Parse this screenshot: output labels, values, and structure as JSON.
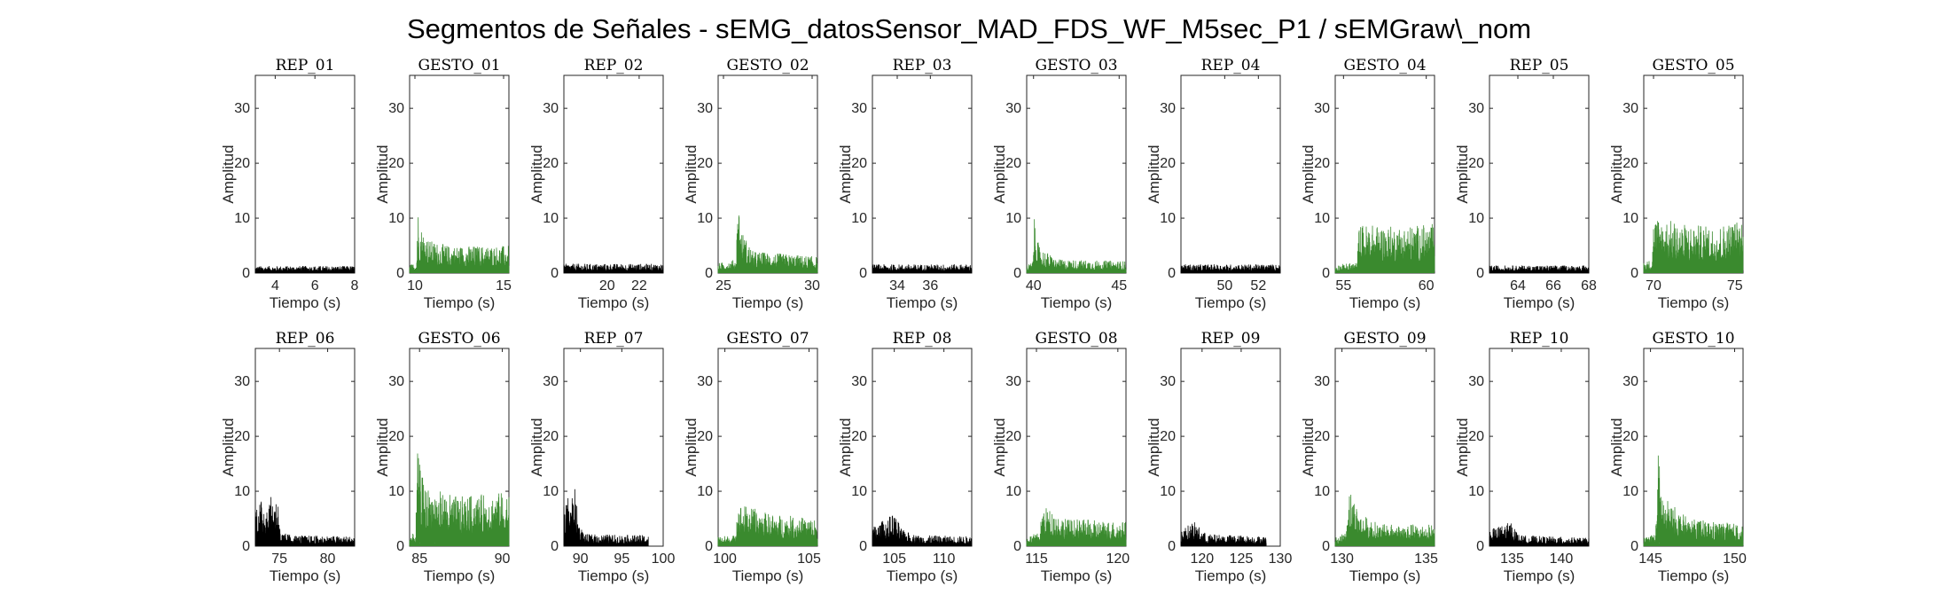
{
  "title": "Segmentos de Señales - sEMG_datosSensor_MAD_FDS_WF_M5sec_P1 / sEMGraw\\_nom",
  "colors": {
    "rep": "#000000",
    "gesto": "#3a8a2e",
    "axis": "#262626"
  },
  "chart_data": [
    {
      "type": "line",
      "title": "REP_01",
      "kind": "rep",
      "xlabel": "Tiempo (s)",
      "ylabel": "Amplitud",
      "xlim": [
        3,
        8
      ],
      "ylim": [
        0,
        36
      ],
      "xticks": [
        4,
        6,
        8
      ],
      "yticks": [
        0,
        10,
        20,
        30
      ],
      "x_range": [
        3,
        8
      ],
      "envelope": [
        [
          0,
          1.3
        ],
        [
          1,
          1.3
        ]
      ]
    },
    {
      "type": "line",
      "title": "GESTO_01",
      "kind": "gesto",
      "xlabel": "Tiempo (s)",
      "ylabel": "Amplitud",
      "xlim": [
        9.7,
        15.3
      ],
      "ylim": [
        0,
        36
      ],
      "xticks": [
        10,
        15
      ],
      "yticks": [
        0,
        10,
        20,
        30
      ],
      "x_range": [
        9.7,
        15.3
      ],
      "envelope": [
        [
          0,
          1.5
        ],
        [
          0.07,
          2
        ],
        [
          0.08,
          13
        ],
        [
          0.1,
          9
        ],
        [
          0.2,
          6
        ],
        [
          0.4,
          5
        ],
        [
          1,
          5
        ]
      ]
    },
    {
      "type": "line",
      "title": "REP_02",
      "kind": "rep",
      "xlabel": "Tiempo (s)",
      "ylabel": "Amplitud",
      "xlim": [
        17.3,
        23.5
      ],
      "ylim": [
        0,
        36
      ],
      "xticks": [
        20,
        22
      ],
      "yticks": [
        0,
        10,
        20,
        30
      ],
      "x_range": [
        17.3,
        23.5
      ],
      "envelope": [
        [
          0,
          1.7
        ],
        [
          1,
          1.7
        ]
      ]
    },
    {
      "type": "line",
      "title": "GESTO_02",
      "kind": "gesto",
      "xlabel": "Tiempo (s)",
      "ylabel": "Amplitud",
      "xlim": [
        24.7,
        30.3
      ],
      "ylim": [
        0,
        36
      ],
      "xticks": [
        25,
        30
      ],
      "yticks": [
        0,
        10,
        20,
        30
      ],
      "x_range": [
        24.7,
        30.3
      ],
      "envelope": [
        [
          0,
          1.8
        ],
        [
          0.18,
          2.5
        ],
        [
          0.2,
          15
        ],
        [
          0.23,
          8
        ],
        [
          0.35,
          4
        ],
        [
          1,
          3
        ]
      ]
    },
    {
      "type": "line",
      "title": "REP_03",
      "kind": "rep",
      "xlabel": "Tiempo (s)",
      "ylabel": "Amplitud",
      "xlim": [
        32.5,
        38.5
      ],
      "ylim": [
        0,
        36
      ],
      "xticks": [
        34,
        36
      ],
      "yticks": [
        0,
        10,
        20,
        30
      ],
      "x_range": [
        32.5,
        38.5
      ],
      "envelope": [
        [
          0,
          1.6
        ],
        [
          1,
          1.6
        ]
      ]
    },
    {
      "type": "line",
      "title": "GESTO_03",
      "kind": "gesto",
      "xlabel": "Tiempo (s)",
      "ylabel": "Amplitud",
      "xlim": [
        39.6,
        45.4
      ],
      "ylim": [
        0,
        36
      ],
      "xticks": [
        40,
        45
      ],
      "yticks": [
        0,
        10,
        20,
        30
      ],
      "x_range": [
        39.6,
        45.4
      ],
      "envelope": [
        [
          0,
          1.5
        ],
        [
          0.06,
          2
        ],
        [
          0.08,
          11
        ],
        [
          0.12,
          5
        ],
        [
          0.3,
          2.5
        ],
        [
          1,
          2.2
        ]
      ]
    },
    {
      "type": "line",
      "title": "REP_04",
      "kind": "rep",
      "xlabel": "Tiempo (s)",
      "ylabel": "Amplitud",
      "xlim": [
        47.4,
        53.3
      ],
      "ylim": [
        0,
        36
      ],
      "xticks": [
        50,
        52
      ],
      "yticks": [
        0,
        10,
        20,
        30
      ],
      "x_range": [
        47.4,
        53.3
      ],
      "envelope": [
        [
          0,
          1.6
        ],
        [
          1,
          1.6
        ]
      ]
    },
    {
      "type": "line",
      "title": "GESTO_04",
      "kind": "gesto",
      "xlabel": "Tiempo (s)",
      "ylabel": "Amplitud",
      "xlim": [
        54.5,
        60.5
      ],
      "ylim": [
        0,
        36
      ],
      "xticks": [
        55,
        60
      ],
      "yticks": [
        0,
        10,
        20,
        30
      ],
      "x_range": [
        54.5,
        60.5
      ],
      "envelope": [
        [
          0,
          1.5
        ],
        [
          0.22,
          2
        ],
        [
          0.24,
          9
        ],
        [
          0.6,
          8.5
        ],
        [
          1,
          9
        ]
      ]
    },
    {
      "type": "line",
      "title": "REP_05",
      "kind": "rep",
      "xlabel": "Tiempo (s)",
      "ylabel": "Amplitud",
      "xlim": [
        62.4,
        68
      ],
      "ylim": [
        0,
        36
      ],
      "xticks": [
        64,
        66,
        68
      ],
      "yticks": [
        0,
        10,
        20,
        30
      ],
      "x_range": [
        62.4,
        68
      ],
      "envelope": [
        [
          0,
          1.4
        ],
        [
          1,
          1.4
        ]
      ]
    },
    {
      "type": "line",
      "title": "GESTO_05",
      "kind": "gesto",
      "xlabel": "Tiempo (s)",
      "ylabel": "Amplitud",
      "xlim": [
        69.4,
        75.5
      ],
      "ylim": [
        0,
        36
      ],
      "xticks": [
        70,
        75
      ],
      "yticks": [
        0,
        10,
        20,
        30
      ],
      "x_range": [
        69.4,
        75.5
      ],
      "envelope": [
        [
          0,
          2
        ],
        [
          0.08,
          2.5
        ],
        [
          0.1,
          10.5
        ],
        [
          0.4,
          9
        ],
        [
          0.7,
          8.5
        ],
        [
          1,
          10
        ]
      ]
    },
    {
      "type": "line",
      "title": "REP_06",
      "kind": "rep",
      "xlabel": "Tiempo (s)",
      "ylabel": "Amplitud",
      "xlim": [
        72.5,
        82.8
      ],
      "ylim": [
        0,
        36
      ],
      "xticks": [
        75,
        80
      ],
      "yticks": [
        0,
        10,
        20,
        30
      ],
      "x_range": [
        72.5,
        82.8
      ],
      "envelope": [
        [
          0,
          8
        ],
        [
          0.24,
          9.5
        ],
        [
          0.25,
          2.5
        ],
        [
          0.4,
          2
        ],
        [
          1,
          1.8
        ]
      ]
    },
    {
      "type": "line",
      "title": "GESTO_06",
      "kind": "gesto",
      "xlabel": "Tiempo (s)",
      "ylabel": "Amplitud",
      "xlim": [
        84.4,
        90.4
      ],
      "ylim": [
        0,
        36
      ],
      "xticks": [
        85,
        90
      ],
      "yticks": [
        0,
        10,
        20,
        30
      ],
      "x_range": [
        84.4,
        90.4
      ],
      "envelope": [
        [
          0,
          2
        ],
        [
          0.06,
          2.5
        ],
        [
          0.08,
          17
        ],
        [
          0.15,
          11
        ],
        [
          0.5,
          9
        ],
        [
          1,
          10
        ]
      ]
    },
    {
      "type": "line",
      "title": "REP_07",
      "kind": "rep",
      "xlabel": "Tiempo (s)",
      "ylabel": "Amplitud",
      "xlim": [
        88,
        100
      ],
      "ylim": [
        0,
        36
      ],
      "xticks": [
        90,
        95,
        100
      ],
      "yticks": [
        0,
        10,
        20,
        30
      ],
      "x_range": [
        88,
        98.2
      ],
      "envelope": [
        [
          0,
          8
        ],
        [
          0.13,
          10.5
        ],
        [
          0.18,
          4
        ],
        [
          0.25,
          2.2
        ],
        [
          1,
          2
        ]
      ]
    },
    {
      "type": "line",
      "title": "GESTO_07",
      "kind": "gesto",
      "xlabel": "Tiempo (s)",
      "ylabel": "Amplitud",
      "xlim": [
        99.6,
        105.5
      ],
      "ylim": [
        0,
        36
      ],
      "xticks": [
        100,
        105
      ],
      "yticks": [
        0,
        10,
        20,
        30
      ],
      "x_range": [
        99.6,
        105.5
      ],
      "envelope": [
        [
          0,
          1.8
        ],
        [
          0.17,
          2
        ],
        [
          0.19,
          8
        ],
        [
          0.5,
          6
        ],
        [
          1,
          5
        ]
      ]
    },
    {
      "type": "line",
      "title": "REP_08",
      "kind": "rep",
      "xlabel": "Tiempo (s)",
      "ylabel": "Amplitud",
      "xlim": [
        102.8,
        112.8
      ],
      "ylim": [
        0,
        36
      ],
      "xticks": [
        105,
        110
      ],
      "yticks": [
        0,
        10,
        20,
        30
      ],
      "x_range": [
        102.8,
        112.8
      ],
      "envelope": [
        [
          0,
          3.5
        ],
        [
          0.22,
          6
        ],
        [
          0.3,
          3
        ],
        [
          0.45,
          2
        ],
        [
          1,
          1.8
        ]
      ]
    },
    {
      "type": "line",
      "title": "GESTO_08",
      "kind": "gesto",
      "xlabel": "Tiempo (s)",
      "ylabel": "Amplitud",
      "xlim": [
        114.4,
        120.5
      ],
      "ylim": [
        0,
        36
      ],
      "xticks": [
        115,
        120
      ],
      "yticks": [
        0,
        10,
        20,
        30
      ],
      "x_range": [
        114.4,
        120.5
      ],
      "envelope": [
        [
          0,
          1.8
        ],
        [
          0.13,
          2.5
        ],
        [
          0.16,
          7.5
        ],
        [
          0.4,
          5
        ],
        [
          1,
          4.5
        ]
      ]
    },
    {
      "type": "line",
      "title": "REP_09",
      "kind": "rep",
      "xlabel": "Tiempo (s)",
      "ylabel": "Amplitud",
      "xlim": [
        117.3,
        130
      ],
      "ylim": [
        0,
        36
      ],
      "xticks": [
        120,
        125,
        130
      ],
      "yticks": [
        0,
        10,
        20,
        30
      ],
      "x_range": [
        117.3,
        128.2
      ],
      "envelope": [
        [
          0,
          3
        ],
        [
          0.15,
          4.5
        ],
        [
          0.3,
          2.2
        ],
        [
          1,
          1.8
        ]
      ]
    },
    {
      "type": "line",
      "title": "GESTO_09",
      "kind": "gesto",
      "xlabel": "Tiempo (s)",
      "ylabel": "Amplitud",
      "xlim": [
        129.6,
        135.5
      ],
      "ylim": [
        0,
        36
      ],
      "xticks": [
        130,
        135
      ],
      "yticks": [
        0,
        10,
        20,
        30
      ],
      "x_range": [
        129.6,
        135.5
      ],
      "envelope": [
        [
          0,
          1.6
        ],
        [
          0.11,
          2.5
        ],
        [
          0.13,
          11.5
        ],
        [
          0.25,
          6
        ],
        [
          0.45,
          4
        ],
        [
          1,
          4
        ]
      ]
    },
    {
      "type": "line",
      "title": "REP_10",
      "kind": "rep",
      "xlabel": "Tiempo (s)",
      "ylabel": "Amplitud",
      "xlim": [
        132.7,
        142.8
      ],
      "ylim": [
        0,
        36
      ],
      "xticks": [
        135,
        140
      ],
      "yticks": [
        0,
        10,
        20,
        30
      ],
      "x_range": [
        132.7,
        142.8
      ],
      "envelope": [
        [
          0,
          3
        ],
        [
          0.22,
          4.5
        ],
        [
          0.3,
          2
        ],
        [
          1,
          1.5
        ]
      ]
    },
    {
      "type": "line",
      "title": "GESTO_10",
      "kind": "gesto",
      "xlabel": "Tiempo (s)",
      "ylabel": "Amplitud",
      "xlim": [
        144.6,
        150.5
      ],
      "ylim": [
        0,
        36
      ],
      "xticks": [
        145,
        150
      ],
      "yticks": [
        0,
        10,
        20,
        30
      ],
      "x_range": [
        144.6,
        150.5
      ],
      "envelope": [
        [
          0,
          1.6
        ],
        [
          0.12,
          2.5
        ],
        [
          0.14,
          18
        ],
        [
          0.2,
          9
        ],
        [
          0.45,
          5
        ],
        [
          1,
          4
        ]
      ]
    }
  ]
}
